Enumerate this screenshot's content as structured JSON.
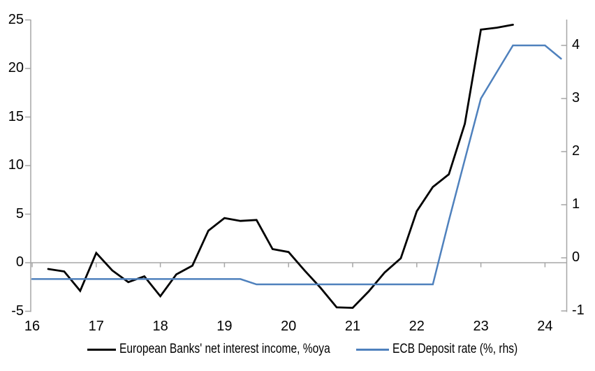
{
  "chart_data": {
    "type": "line",
    "title": "",
    "grid": "zero-line-only",
    "legend_position": "bottom",
    "x_axis": {
      "tick_labels": [
        "16",
        "17",
        "18",
        "19",
        "20",
        "21",
        "22",
        "23",
        "24"
      ],
      "tick_values": [
        16,
        17,
        18,
        19,
        20,
        21,
        22,
        23,
        24
      ],
      "range": [
        16,
        24.33
      ]
    },
    "y_axis_left": {
      "tick_labels": [
        "25",
        "20",
        "15",
        "10",
        "5",
        "0",
        "-5"
      ],
      "tick_values": [
        25,
        20,
        15,
        10,
        5,
        0,
        -5
      ],
      "range": [
        -5,
        25
      ]
    },
    "y_axis_right": {
      "tick_labels": [
        "4",
        "3",
        "2",
        "1",
        "0",
        "-1"
      ],
      "tick_values": [
        4,
        3,
        2,
        1,
        0,
        -1
      ],
      "range": [
        -1,
        4.5
      ]
    },
    "series": [
      {
        "name": "European Banks' net interest income, %oya",
        "axis": "left",
        "color": "#000000",
        "stroke_width": 2.8,
        "points": [
          [
            16.25,
            -0.65
          ],
          [
            16.5,
            -0.9
          ],
          [
            16.75,
            -2.9
          ],
          [
            17.0,
            1.0
          ],
          [
            17.25,
            -0.8
          ],
          [
            17.5,
            -2.0
          ],
          [
            17.75,
            -1.4
          ],
          [
            18.0,
            -3.45
          ],
          [
            18.25,
            -1.2
          ],
          [
            18.5,
            -0.3
          ],
          [
            18.75,
            3.3
          ],
          [
            19.0,
            4.6
          ],
          [
            19.25,
            4.3
          ],
          [
            19.5,
            4.4
          ],
          [
            19.75,
            1.4
          ],
          [
            20.0,
            1.1
          ],
          [
            20.25,
            -0.8
          ],
          [
            20.5,
            -2.6
          ],
          [
            20.75,
            -4.6
          ],
          [
            21.0,
            -4.65
          ],
          [
            21.25,
            -2.95
          ],
          [
            21.5,
            -1.0
          ],
          [
            21.75,
            0.45
          ],
          [
            22.0,
            5.3
          ],
          [
            22.25,
            7.8
          ],
          [
            22.5,
            9.1
          ],
          [
            22.75,
            14.3
          ],
          [
            23.0,
            24.0
          ],
          [
            23.25,
            24.2
          ],
          [
            23.5,
            24.5
          ]
        ]
      },
      {
        "name": "ECB Deposit rate (%, rhs)",
        "axis": "right",
        "color": "#4F81BD",
        "stroke_width": 2.5,
        "points": [
          [
            16.0,
            -0.4
          ],
          [
            16.25,
            -0.4
          ],
          [
            16.5,
            -0.4
          ],
          [
            16.75,
            -0.4
          ],
          [
            17.0,
            -0.4
          ],
          [
            17.25,
            -0.4
          ],
          [
            17.5,
            -0.4
          ],
          [
            17.75,
            -0.4
          ],
          [
            18.0,
            -0.4
          ],
          [
            18.25,
            -0.4
          ],
          [
            18.5,
            -0.4
          ],
          [
            18.75,
            -0.4
          ],
          [
            19.0,
            -0.4
          ],
          [
            19.25,
            -0.4
          ],
          [
            19.5,
            -0.5
          ],
          [
            19.75,
            -0.5
          ],
          [
            20.0,
            -0.5
          ],
          [
            20.25,
            -0.5
          ],
          [
            20.5,
            -0.5
          ],
          [
            20.75,
            -0.5
          ],
          [
            21.0,
            -0.5
          ],
          [
            21.25,
            -0.5
          ],
          [
            21.5,
            -0.5
          ],
          [
            21.75,
            -0.5
          ],
          [
            22.0,
            -0.5
          ],
          [
            22.25,
            -0.5
          ],
          [
            22.5,
            0.7
          ],
          [
            22.75,
            1.85
          ],
          [
            23.0,
            3.0
          ],
          [
            23.25,
            3.5
          ],
          [
            23.5,
            4.0
          ],
          [
            23.75,
            4.0
          ],
          [
            24.0,
            4.0
          ],
          [
            24.25,
            3.75
          ]
        ]
      }
    ]
  },
  "colors": {
    "axis": "#A6A6A6",
    "background": "#FFFFFF",
    "nii_line": "#000000",
    "ecb_line": "#4F81BD",
    "text": "#000000"
  }
}
